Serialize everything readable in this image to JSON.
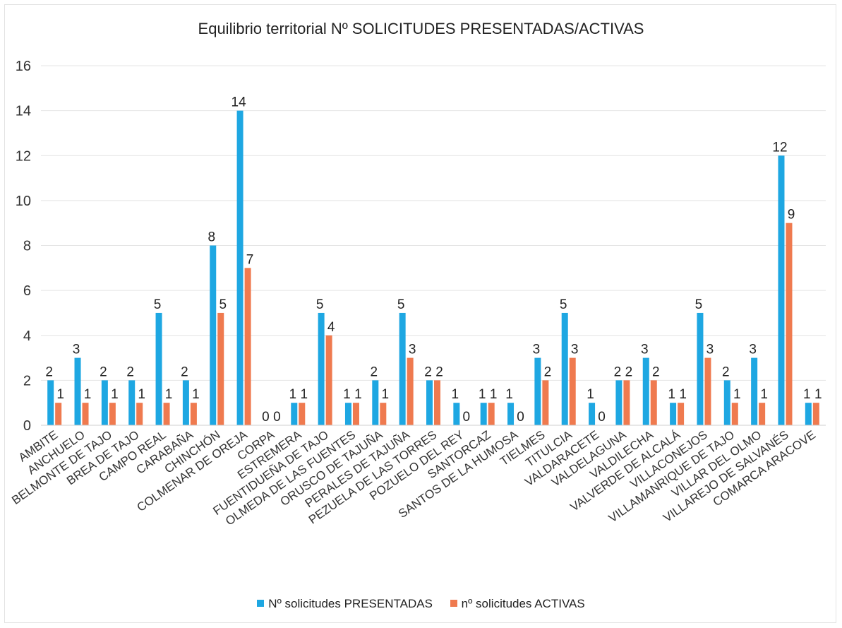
{
  "chart_data": {
    "type": "bar",
    "title": "Equilibrio territorial Nº SOLICITUDES PRESENTADAS/ACTIVAS",
    "xlabel": "",
    "ylabel": "",
    "ylim": [
      0,
      16
    ],
    "yticks": [
      "0",
      "2",
      "4",
      "6",
      "8",
      "10",
      "12",
      "14",
      "16"
    ],
    "grid": true,
    "legend_position": "bottom",
    "categories": [
      "AMBITE",
      "ANCHUELO",
      "BELMONTE DE TAJO",
      "BREA DE TAJO",
      "CAMPO REAL",
      "CARABAÑA",
      "CHINCHÓN",
      "COLMENAR DE OREJA",
      "CORPA",
      "ESTREMERA",
      "FUENTIDUEÑA DE TAJO",
      "OLMEDA DE LAS FUENTES",
      "ORUSCO DE TAJUÑA",
      "PERALES DE TAJUÑA",
      "PEZUELA DE LAS TORRES",
      "POZUELO DEL REY",
      "SANTORCAZ",
      "SANTOS DE LA HUMOSA",
      "TIELMES",
      "TITULCIA",
      "VALDARACETE",
      "VALDELAGUNA",
      "VALDILECHA",
      "VALVERDE DE ALCALÁ",
      "VILLACONEJOS",
      "VILLAMANRIQUE DE TAJO",
      "VILLAR DEL OLMO",
      "VILLAREJO DE SALVANÉS",
      "COMARCA ARACOVE"
    ],
    "series": [
      {
        "name": "Nº solicitudes PRESENTADAS",
        "color": "#1ea7e2",
        "values": [
          2,
          3,
          2,
          2,
          5,
          2,
          8,
          14,
          0,
          1,
          5,
          1,
          2,
          5,
          2,
          1,
          1,
          1,
          3,
          5,
          1,
          2,
          3,
          1,
          5,
          2,
          3,
          12,
          1
        ]
      },
      {
        "name": "nº solicitudes ACTIVAS",
        "color": "#ef7a4f",
        "values": [
          1,
          1,
          1,
          1,
          1,
          1,
          5,
          7,
          0,
          1,
          4,
          1,
          1,
          3,
          2,
          0,
          1,
          0,
          2,
          3,
          0,
          2,
          2,
          1,
          3,
          1,
          1,
          9,
          1
        ]
      }
    ]
  }
}
